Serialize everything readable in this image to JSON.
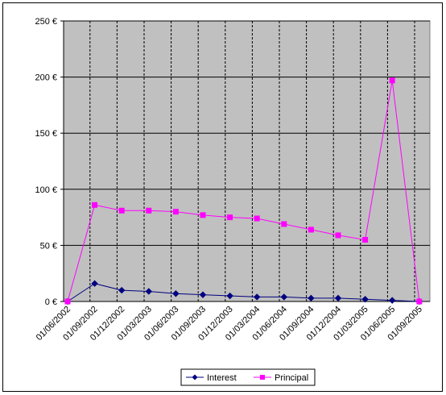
{
  "chart_data": {
    "type": "line",
    "title": "",
    "xlabel": "",
    "ylabel": "",
    "x_tick_labels": [
      "01/06/2002",
      "01/09/2002",
      "01/12/2002",
      "01/03/2003",
      "01/06/2003",
      "01/09/2003",
      "01/12/2003",
      "01/03/2004",
      "01/06/2004",
      "01/09/2004",
      "01/12/2004",
      "01/03/2005",
      "01/06/2005",
      "01/09/2005"
    ],
    "y_tick_labels": [
      "0 €",
      "50 €",
      "100 €",
      "150 €",
      "200 €",
      "250 €"
    ],
    "y_ticks": [
      0,
      50,
      100,
      150,
      200,
      250
    ],
    "ylim": [
      0,
      250
    ],
    "grid": {
      "horizontal": true,
      "vertical_dashed": true
    },
    "plot_background": "#c0c0c0",
    "legend_position": "bottom",
    "categories": [
      "01/06/2002",
      "01/09/2002",
      "01/12/2002",
      "01/03/2003",
      "01/06/2003",
      "01/09/2003",
      "01/12/2003",
      "01/03/2004",
      "01/06/2004",
      "01/09/2004",
      "01/12/2004",
      "01/03/2005",
      "01/06/2005",
      "01/09/2005"
    ],
    "series": [
      {
        "name": "Interest",
        "color": "#000080",
        "marker": "diamond",
        "values": [
          0,
          16,
          10,
          9,
          7,
          6,
          5,
          4,
          4,
          3,
          3,
          2,
          1,
          0
        ]
      },
      {
        "name": "Principal",
        "color": "#ff00ff",
        "marker": "square",
        "values": [
          0,
          86,
          81,
          81,
          80,
          77,
          75,
          74,
          69,
          64,
          59,
          55,
          197,
          0
        ]
      }
    ]
  }
}
